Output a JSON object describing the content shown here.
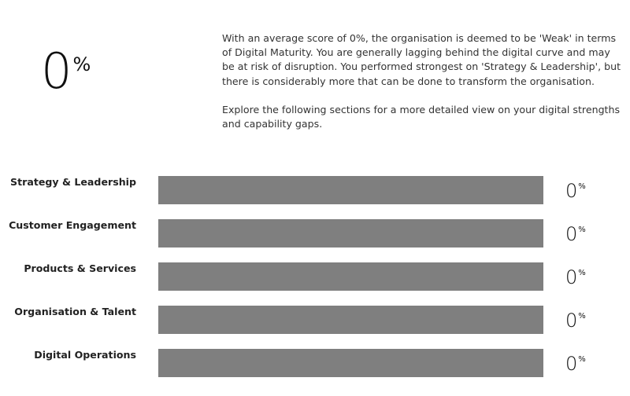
{
  "overall": {
    "score": "0",
    "unit": "%"
  },
  "summary": {
    "paragraph1": "With an average score of 0%, the organisation is deemed to be 'Weak' in terms of Digital Maturity. You are generally lagging behind the digital curve and may be at risk of disruption. You performed strongest on 'Strategy & Leadership', but there is considerably more that can be done to transform the organisation.",
    "paragraph2": "Explore the following sections for a more detailed view on your digital strengths and capability gaps."
  },
  "colors": {
    "bar_track": "#7f7f7f",
    "bar_fill": "#4a90c8"
  },
  "categories": [
    {
      "label": "Strategy & Leadership",
      "score": "0",
      "unit": "%",
      "fraction": 0
    },
    {
      "label": "Customer Engagement",
      "score": "0",
      "unit": "%",
      "fraction": 0
    },
    {
      "label": "Products & Services",
      "score": "0",
      "unit": "%",
      "fraction": 0
    },
    {
      "label": "Organisation & Talent",
      "score": "0",
      "unit": "%",
      "fraction": 0
    },
    {
      "label": "Digital Operations",
      "score": "0",
      "unit": "%",
      "fraction": 0
    }
  ]
}
